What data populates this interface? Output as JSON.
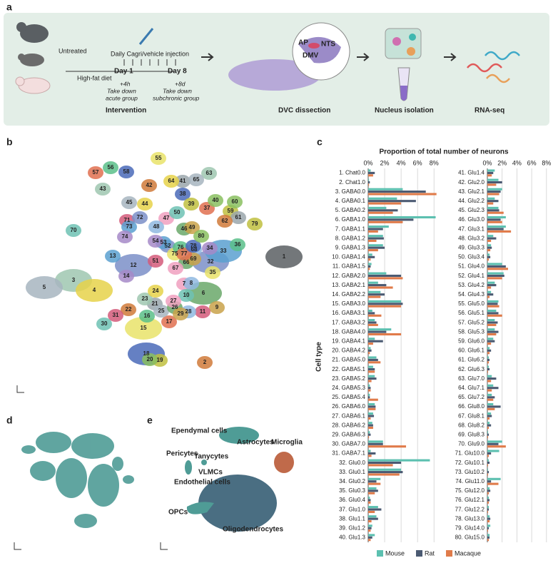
{
  "panel_labels": {
    "a": "a",
    "b": "b",
    "c": "c",
    "d": "d",
    "e": "e"
  },
  "panel_a": {
    "untreated": "Untreated",
    "diet": "High-fat diet",
    "injection": "Daily Cagri/vehicle injection",
    "day1": "Day 1",
    "day8": "Day 8",
    "acute_time": "+4h",
    "acute_take": "Take down",
    "acute_group": "acute group",
    "sub_time": "+8d",
    "sub_take": "Take down",
    "sub_group": "subchronic group",
    "intervention": "Intervention",
    "ap": "AP",
    "nts": "NTS",
    "dmv": "DMV",
    "dissection": "DVC dissection",
    "isolation": "Nucleus isolation",
    "rnaseq": "RNA-seq"
  },
  "panel_b": {
    "clusters": [
      1,
      2,
      3,
      4,
      5,
      6,
      7,
      8,
      9,
      10,
      11,
      12,
      13,
      14,
      15,
      16,
      17,
      18,
      19,
      20,
      21,
      22,
      23,
      24,
      25,
      26,
      27,
      28,
      29,
      30,
      31,
      32,
      33,
      34,
      35,
      36,
      37,
      38,
      39,
      40,
      41,
      42,
      43,
      44,
      45,
      46,
      47,
      48,
      49,
      50,
      51,
      52,
      53,
      54,
      55,
      56,
      57,
      58,
      59,
      60,
      61,
      62,
      63,
      64,
      65,
      66,
      67,
      68,
      69,
      70,
      71,
      72,
      73,
      74,
      75,
      76,
      77,
      78,
      79,
      80
    ]
  },
  "panel_e": {
    "labels": [
      "Ependymal cells",
      "Astrocytes",
      "Microglia",
      "Pericytes",
      "Tanycytes",
      "VLMCs",
      "Endothelial cells",
      "OPCs",
      "Oligodendrocytes"
    ]
  },
  "chart_data": {
    "type": "bar",
    "orientation": "horizontal",
    "title": "Proportion of total number of neurons",
    "y_label": "Cell type",
    "categories": [
      "1. Chat0.0",
      "2. Chat1.0",
      "3. GABA0.0",
      "4. GABA0.1",
      "5. GABA0.2",
      "6. GABA1.0",
      "7. GABA1.1",
      "8. GABA1.2",
      "9. GABA1.3",
      "10. GABA1.4",
      "11. GABA1.5",
      "12. GABA2.0",
      "13. GABA2.1",
      "14. GABA2.2",
      "15. GABA3.0",
      "16. GABA3.1",
      "17. GABA3.2",
      "18. GABA4.0",
      "19. GABA4.1",
      "20. GABA4.2",
      "21. GABA5.0",
      "22. GABA5.1",
      "23. GABA5.2",
      "24. GABA5.3",
      "25. GABA5.4",
      "26. GABA6.0",
      "27. GABA6.1",
      "28. GABA6.2",
      "29. GABA6.3",
      "30. GABA7.0",
      "31. GABA7.1",
      "32. Glu0.0",
      "33. Glu0.1",
      "34. Glu0.2",
      "35. Glu0.3",
      "36. Glu0.4",
      "37. Glu1.0",
      "38. Glu1.1",
      "39. Glu1.2",
      "40. Glu1.3",
      "41. Glu1.4",
      "42. Glu2.0",
      "43. Glu2.1",
      "44. Glu2.2",
      "45. Glu2.3",
      "46. Glu3.0",
      "47. Glu3.1",
      "48. Glu3.2",
      "49. Glu3.3",
      "50. Glu3.4",
      "51. Glu4.0",
      "52. Glu4.1",
      "53. Glu4.2",
      "54. Glu4.3",
      "55. Glu5.0",
      "56. Glu5.1",
      "57. Glu5.2",
      "58. Glu5.3",
      "59. Glu6.0",
      "60. Glu6.1",
      "61. Glu6.2",
      "62. Glu6.3",
      "63. Glu7.0",
      "64. Glu7.1",
      "65. Glu7.2",
      "66. Glu8.0",
      "67. Glu8.1",
      "68. Glu8.2",
      "69. Glu8.3",
      "70. Glu9.0",
      "71. Glu10.0",
      "72. Glu10.1",
      "73. Glu10.2",
      "74. Glu11.0",
      "75. Glu12.0",
      "76. Glu12.1",
      "77. Glu12.2",
      "78. Glu13.0",
      "79. Glu14.0",
      "80. Glu15.0"
    ],
    "series": [
      {
        "name": "Mouse",
        "color": "#5cc0b0",
        "values": [
          0.3,
          0.1,
          4.2,
          3.5,
          2.2,
          8.2,
          2.5,
          1.8,
          1.8,
          0.5,
          0.4,
          2.2,
          1.2,
          1.5,
          4.0,
          0.5,
          0.8,
          2.8,
          0.8,
          0.3,
          1.0,
          0.6,
          0.8,
          0.2,
          0.2,
          0.8,
          0.6,
          0.5,
          0.2,
          1.8,
          0.3,
          7.5,
          4.0,
          1.5,
          1.0,
          0.2,
          1.2,
          1.0,
          0.5,
          0.8,
          1.0,
          1.5,
          2.0,
          1.0,
          1.5,
          2.5,
          2.5,
          0.8,
          0.5,
          0.3,
          2.0,
          2.2,
          1.0,
          0.5,
          1.5,
          1.2,
          1.0,
          1.0,
          0.8,
          0.3,
          0.2,
          0.2,
          0.6,
          0.8,
          0.6,
          0.8,
          0.5,
          0.3,
          0.1,
          2.0,
          1.6,
          0.2,
          0.1,
          1.8,
          0.3,
          0.2,
          0.2,
          0.3,
          0.4,
          0.3
        ]
      },
      {
        "name": "Rat",
        "color": "#4b5a72",
        "values": [
          0.8,
          0.2,
          7.0,
          5.8,
          3.6,
          5.5,
          1.8,
          1.9,
          2.0,
          0.8,
          0.3,
          4.0,
          2.2,
          2.0,
          4.2,
          0.8,
          1.0,
          2.2,
          1.8,
          0.4,
          1.2,
          0.8,
          1.0,
          0.3,
          0.2,
          0.9,
          0.7,
          0.6,
          0.3,
          1.8,
          0.9,
          4.0,
          4.2,
          1.0,
          1.2,
          0.3,
          1.6,
          1.2,
          0.4,
          0.5,
          0.8,
          2.0,
          1.8,
          1.5,
          1.6,
          1.8,
          2.2,
          1.2,
          0.6,
          0.4,
          2.5,
          2.3,
          1.2,
          0.8,
          1.4,
          1.5,
          1.4,
          1.5,
          1.0,
          0.5,
          0.3,
          0.3,
          1.2,
          1.5,
          1.0,
          1.8,
          0.6,
          0.5,
          0.2,
          1.5,
          0.5,
          0.3,
          0.2,
          0.5,
          0.4,
          0.3,
          0.2,
          0.4,
          0.2,
          0.3
        ]
      },
      {
        "name": "Macaque",
        "color": "#e07b4a",
        "values": [
          0.6,
          0.1,
          8.3,
          4.0,
          3.0,
          4.2,
          1.2,
          1.0,
          1.2,
          0.3,
          0.2,
          4.2,
          3.0,
          1.5,
          4.0,
          1.6,
          1.2,
          4.0,
          0.6,
          0.2,
          1.5,
          0.8,
          0.4,
          0.3,
          1.2,
          0.9,
          0.3,
          0.6,
          0.1,
          4.6,
          0.4,
          3.0,
          3.8,
          1.5,
          0.8,
          0.3,
          0.8,
          0.4,
          0.3,
          0.3,
          0.6,
          1.2,
          1.6,
          0.8,
          2.2,
          2.0,
          3.2,
          0.5,
          0.4,
          0.2,
          2.8,
          2.0,
          0.5,
          0.3,
          1.6,
          2.0,
          1.2,
          1.2,
          0.5,
          0.3,
          0.2,
          0.1,
          0.5,
          0.6,
          0.8,
          1.0,
          0.3,
          0.2,
          0.1,
          2.5,
          0.2,
          0.1,
          0.1,
          1.5,
          0.2,
          0.2,
          0.1,
          0.3,
          0.1,
          0.2
        ]
      }
    ],
    "xlim": [
      0,
      8.5
    ],
    "xticks": [
      {
        "value": 0,
        "label": "0%"
      },
      {
        "value": 2,
        "label": "2%"
      },
      {
        "value": 4,
        "label": "4%"
      },
      {
        "value": 6,
        "label": "6%"
      },
      {
        "value": 8,
        "label": "8%"
      }
    ],
    "grid": true,
    "legend": "bottom"
  }
}
